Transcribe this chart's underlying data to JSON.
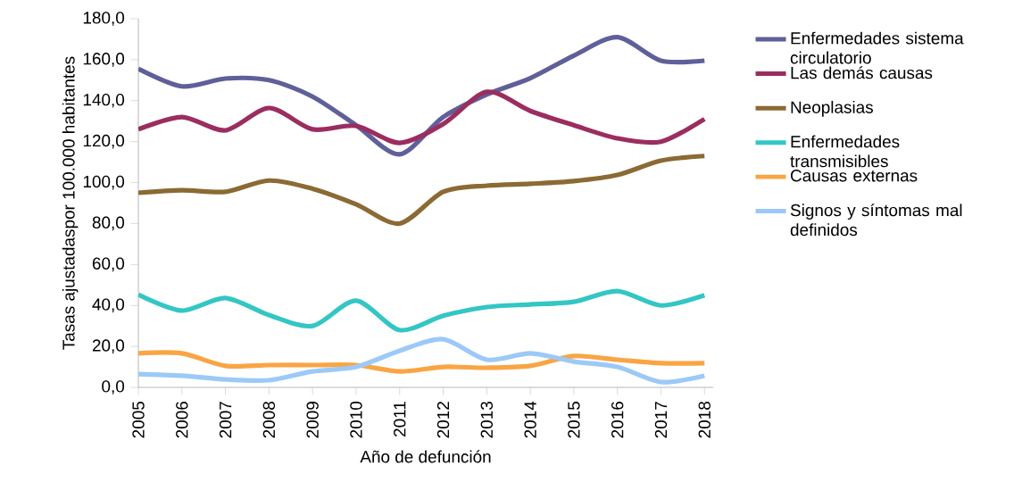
{
  "chart_data": {
    "type": "line",
    "xlabel": "Año de defunción",
    "ylabel": "Tasas ajustadaspor 100.000 habitantes",
    "categories": [
      "2005",
      "2006",
      "2007",
      "2008",
      "2009",
      "2010",
      "2011",
      "2012",
      "2013",
      "2014",
      "2015",
      "2016",
      "2017",
      "2018"
    ],
    "series": [
      {
        "name": "Enfermedades sistema circulatorio",
        "color": "#5f5f9a",
        "values": [
          155.6,
          147,
          150.8,
          150,
          142,
          128,
          113.8,
          132,
          143,
          151,
          162,
          171,
          159.5,
          159.5
        ]
      },
      {
        "name": "Las demás causas",
        "color": "#9b2d5f",
        "values": [
          126,
          132,
          125.5,
          136.4,
          126,
          127.7,
          119.4,
          128.6,
          144.3,
          135,
          128,
          121.6,
          120,
          131
        ]
      },
      {
        "name": "Neoplasias",
        "color": "#8b6a33",
        "values": [
          95,
          96.3,
          95.5,
          101,
          97,
          89.4,
          80,
          95.5,
          98.5,
          99.4,
          100.7,
          103.7,
          110.7,
          113
        ]
      },
      {
        "name": "Enfermedades transmisibles",
        "color": "#33c6c4",
        "values": [
          45.3,
          37.5,
          43.6,
          35.3,
          30,
          42.3,
          28,
          35,
          39.2,
          40.5,
          41.8,
          47,
          40,
          45
        ]
      },
      {
        "name": "Causas externas",
        "color": "#f9a544",
        "values": [
          16.6,
          16.6,
          10.5,
          10.9,
          10.9,
          10.9,
          7.8,
          10,
          9.6,
          10.5,
          15.3,
          13.5,
          11.8,
          11.8
        ]
      },
      {
        "name": "Signos y síntomas mal definidos",
        "color": "#9cc9f7",
        "values": [
          6.5,
          5.7,
          3.9,
          3.5,
          7.8,
          10,
          17.9,
          23.5,
          13.5,
          16.6,
          12.6,
          10,
          2.6,
          5.7
        ]
      }
    ],
    "ylim": [
      0,
      180
    ],
    "yticks": [
      {
        "value": 0,
        "label": "0,0"
      },
      {
        "value": 20,
        "label": "20,0"
      },
      {
        "value": 40,
        "label": "40,0"
      },
      {
        "value": 60,
        "label": "60,0"
      },
      {
        "value": 80,
        "label": "80,0"
      },
      {
        "value": 100,
        "label": "100,0"
      },
      {
        "value": 120,
        "label": "120,0"
      },
      {
        "value": 140,
        "label": "140,0"
      },
      {
        "value": 160,
        "label": "160,0"
      },
      {
        "value": 180,
        "label": "180,0"
      }
    ],
    "grid": false,
    "legend": "right",
    "marker": "none",
    "line_style": "solid"
  }
}
